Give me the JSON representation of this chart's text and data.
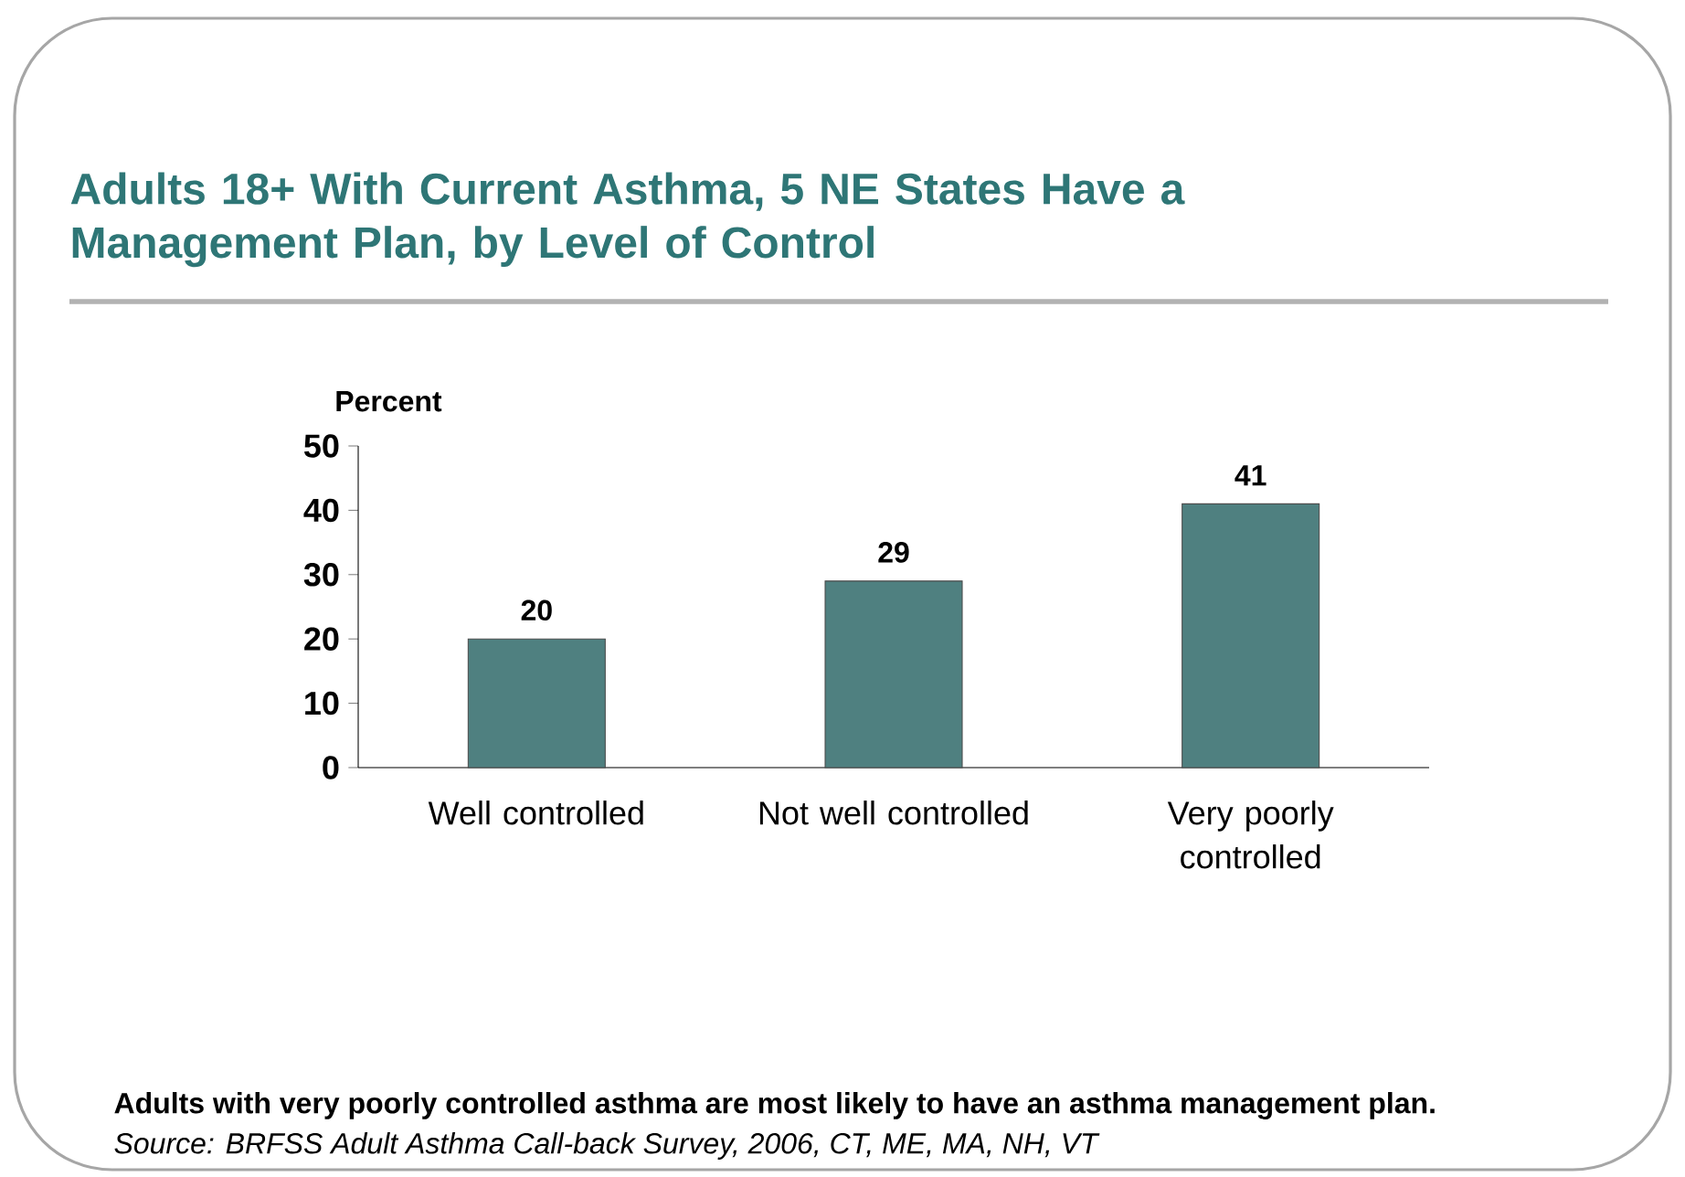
{
  "chart_data": {
    "type": "bar",
    "title": "Adults 18+ With Current Asthma, 5 NE States Have a Management Plan, by Level of Control",
    "ylabel": "Percent",
    "categories": [
      "Well controlled",
      "Not well controlled",
      "Very poorly controlled"
    ],
    "values": [
      20,
      29,
      41
    ],
    "color": "#4f8080",
    "ylim": [
      0,
      50
    ],
    "yticks": [
      0,
      10,
      20,
      30,
      40,
      50
    ],
    "data_labels": true,
    "annotations": [
      "Adults with very poorly controlled asthma are most likely to have an asthma  management plan.",
      "Source: BRFSS Adult Asthma Call-back Survey, 2006, CT, ME, MA, NH, VT"
    ]
  }
}
